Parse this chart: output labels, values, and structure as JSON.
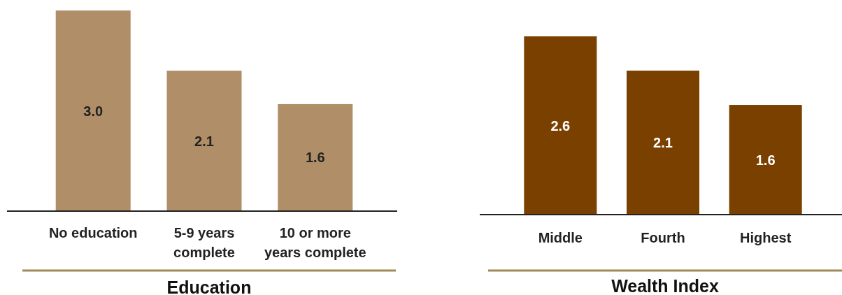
{
  "chart_data": [
    {
      "type": "bar",
      "xlabel": "Education",
      "categories": [
        "No education",
        "5-9 years complete",
        "10 or more years complete"
      ],
      "values": [
        3.0,
        2.1,
        1.6
      ],
      "value_labels": [
        "3.0",
        "2.1",
        "1.6"
      ],
      "color": "#b08f68"
    },
    {
      "type": "bar",
      "xlabel": "Wealth Index",
      "categories": [
        "Middle",
        "Fourth",
        "Highest"
      ],
      "values": [
        2.6,
        2.1,
        1.6
      ],
      "color": "#7a4000",
      "data_labels": true
    }
  ]
}
